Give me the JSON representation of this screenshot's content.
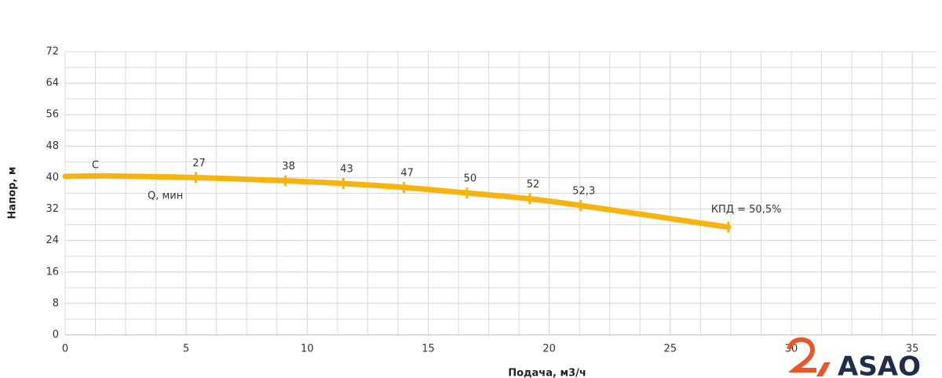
{
  "chart_data": {
    "type": "line",
    "x_label": "Подача, м3/ч",
    "y_label": "Напор, м",
    "xlim": [
      0,
      36
    ],
    "xticks": [
      0,
      5,
      10,
      15,
      20,
      25,
      30,
      35
    ],
    "ylim": [
      0,
      72
    ],
    "yticks": [
      0,
      8,
      16,
      24,
      32,
      40,
      48,
      56,
      64,
      72
    ],
    "grid": true,
    "series": [
      {
        "color": "#f5b40f",
        "x": [
          0,
          2,
          5.4,
          9.1,
          11.5,
          14,
          16.6,
          19.2,
          21.3,
          27.4
        ],
        "values": [
          40.3,
          40.4,
          40,
          39.2,
          38.5,
          37.5,
          36.1,
          34.6,
          32.9,
          27.4
        ],
        "efficiency": [
          null,
          null,
          27,
          38,
          43,
          47,
          50,
          52,
          {
            "value": 52.3,
            "label": "52,3"
          },
          null
        ]
      }
    ],
    "annotations": {
      "start": "С",
      "q_min": "Q, мин",
      "end": "КПД = 50,5%"
    }
  },
  "logo": "ASAO"
}
